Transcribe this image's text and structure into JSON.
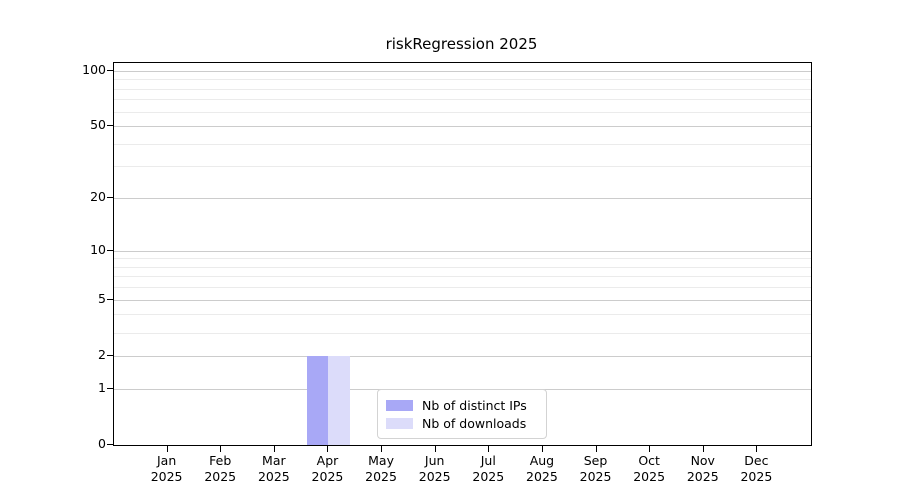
{
  "title": "riskRegression 2025",
  "chart_data": {
    "type": "bar",
    "title": "riskRegression 2025",
    "categories": [
      "Jan 2025",
      "Feb 2025",
      "Mar 2025",
      "Apr 2025",
      "May 2025",
      "Jun 2025",
      "Jul 2025",
      "Aug 2025",
      "Sep 2025",
      "Oct 2025",
      "Nov 2025",
      "Dec 2025"
    ],
    "series": [
      {
        "name": "Nb of distinct IPs",
        "color": "#a8a8f6",
        "values": [
          0,
          0,
          0,
          2,
          0,
          0,
          0,
          0,
          0,
          0,
          0,
          0
        ]
      },
      {
        "name": "Nb of downloads",
        "color": "#dcdcfa",
        "values": [
          0,
          0,
          0,
          2,
          0,
          0,
          0,
          0,
          0,
          0,
          0,
          0
        ]
      }
    ],
    "xlabel": "",
    "ylabel": "",
    "yscale": "log1p",
    "ylim": [
      0,
      110
    ],
    "y_major_ticks": [
      0,
      1,
      2,
      5,
      10,
      20,
      50,
      100
    ],
    "y_minor_gridlines": [
      3,
      4,
      6,
      7,
      8,
      9,
      30,
      40,
      60,
      70,
      80,
      90
    ],
    "grid": "horizontal",
    "legend_position": "lower-center-inside",
    "colors": {
      "axis": "#000000",
      "grid_major": "#cccccc",
      "grid_minor": "#ebebeb",
      "background": "#ffffff"
    }
  }
}
